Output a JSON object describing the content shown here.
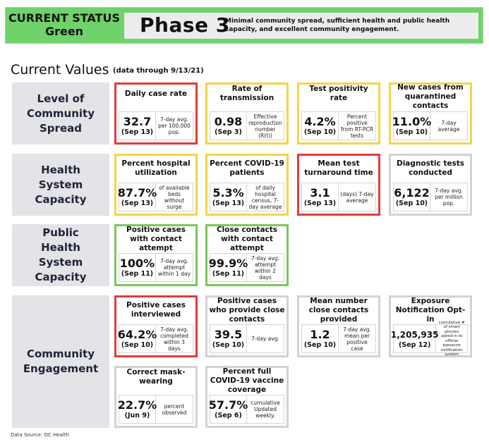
{
  "header": {
    "status_line1": "CURRENT STATUS",
    "status_line2": "Green",
    "phase": "Phase 3",
    "description": "Minimal community spread, sufficient health and public health capacity, and excellent community engagement."
  },
  "current_values": {
    "title": "Current Values",
    "subtitle": "(data through 9/13/21)"
  },
  "categories": [
    "Level of Community Spread",
    "Health System Capacity",
    "Public Health System Capacity",
    "Community Engagement"
  ],
  "metrics": {
    "daily_case_rate": {
      "title": "Daily case rate",
      "value": "32.7",
      "date": "(Sep 13)",
      "desc": "7-day avg. per 100,000 pop.",
      "status": "red"
    },
    "rate_of_transmission": {
      "title": "Rate of transmission",
      "value": "0.98",
      "date": "(Sep 3)",
      "desc": "Effective reproduction number (R(t))",
      "status": "yellow"
    },
    "test_positivity_rate": {
      "title": "Test positivity rate",
      "value": "4.2%",
      "date": "(Sep 10)",
      "desc": "Percent positive from RT-PCR tests",
      "status": "yellow"
    },
    "new_cases_quarantined": {
      "title": "New cases from quarantined contacts",
      "value": "11.0%",
      "date": "(Sep 10)",
      "desc": "7-day average",
      "status": "yellow"
    },
    "hospital_utilization": {
      "title": "Percent hospital utilization",
      "value": "87.7%",
      "date": "(Sep 13)",
      "desc": "of available beds without surge",
      "status": "yellow"
    },
    "covid_patients": {
      "title": "Percent COVID-19 patients",
      "value": "5.3%",
      "date": "(Sep 13)",
      "desc": "of daily hospital census, 7-day average",
      "status": "yellow"
    },
    "test_turnaround": {
      "title": "Mean test turnaround time",
      "value": "3.1",
      "date": "(Sep 13)",
      "desc": "(days) 7-day average",
      "status": "red"
    },
    "diagnostic_tests": {
      "title": "Diagnostic tests conducted",
      "value": "6,122",
      "date": "(Sep 10)",
      "desc": "7-day avg. per million pop.",
      "status": "gray"
    },
    "positive_contact_attempt": {
      "title": "Positive cases with contact attempt",
      "value": "100%",
      "date": "(Sep 11)",
      "desc": "7-day avg. attempt within 1 day",
      "status": "green"
    },
    "close_contacts_attempt": {
      "title": "Close contacts with contact attempt",
      "value": "99.9%",
      "date": "(Sep 11)",
      "desc": "7-day avg. attempt within 2 days",
      "status": "green"
    },
    "positive_interviewed": {
      "title": "Positive cases interviewed",
      "value": "64.2%",
      "date": "(Sep 10)",
      "desc": "7-day avg. completed within 3 days",
      "status": "red"
    },
    "provide_close_contacts": {
      "title": "Positive cases who provide close contacts",
      "value": "39.5",
      "date": "(Sep 10)",
      "desc": "7-day avg.",
      "status": "gray"
    },
    "mean_close_contacts": {
      "title": "Mean number close contacts provided",
      "value": "1.2",
      "date": "(Sep 10)",
      "desc": "7-day avg. mean per positive case",
      "status": "gray"
    },
    "exposure_notification": {
      "title": "Exposure Notification Opt-in",
      "value": "1,205,935",
      "date": "(Sep 12)",
      "desc": "cumulative # of smart phones opted-in to official exposure notification system",
      "status": "gray"
    },
    "mask_wearing": {
      "title": "Correct mask-wearing",
      "value": "22.7%",
      "date": "(Jun 9)",
      "desc": "percent observed",
      "status": "gray"
    },
    "vaccine_coverage": {
      "title": "Percent full COVID-19 vaccine coverage",
      "value": "57.7%",
      "date": "(Sep 6)",
      "desc": "cumulative Updated weekly.",
      "status": "gray"
    }
  },
  "source": "Data Source: DC Health"
}
